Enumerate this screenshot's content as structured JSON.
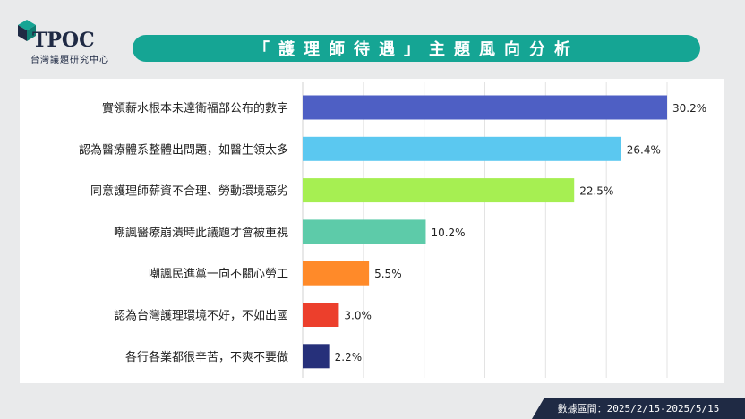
{
  "brand": {
    "logo_text": "TPOC",
    "logo_subtitle": "台灣議題研究中心"
  },
  "header": {
    "title": "「護理師待遇」主題風向分析"
  },
  "footer": {
    "range_text": "數據區間：2025/2/15-2025/5/15"
  },
  "chart_data": {
    "type": "bar",
    "orientation": "horizontal",
    "categories": [
      "實領薪水根本未達衛福部公布的數字",
      "認為醫療體系整體出問題，如醫生領太多",
      "同意護理師薪資不合理、勞動環境惡劣",
      "嘲諷醫療崩潰時此議題才會被重視",
      "嘲諷民進黨一向不關心勞工",
      "認為台灣護理環境不好，不如出國",
      "各行各業都很辛苦，不爽不要做"
    ],
    "values": [
      30.2,
      26.4,
      22.5,
      10.2,
      5.5,
      3.0,
      2.2
    ],
    "value_labels": [
      "30.2%",
      "26.4%",
      "22.5%",
      "10.2%",
      "5.5%",
      "3.0%",
      "2.2%"
    ],
    "colors": [
      "#4e5fc4",
      "#5bc8f0",
      "#a6ef52",
      "#5dcba9",
      "#ff8a29",
      "#ec3f2c",
      "#26307a"
    ],
    "xlim": [
      0,
      30.2
    ],
    "grid": true
  }
}
